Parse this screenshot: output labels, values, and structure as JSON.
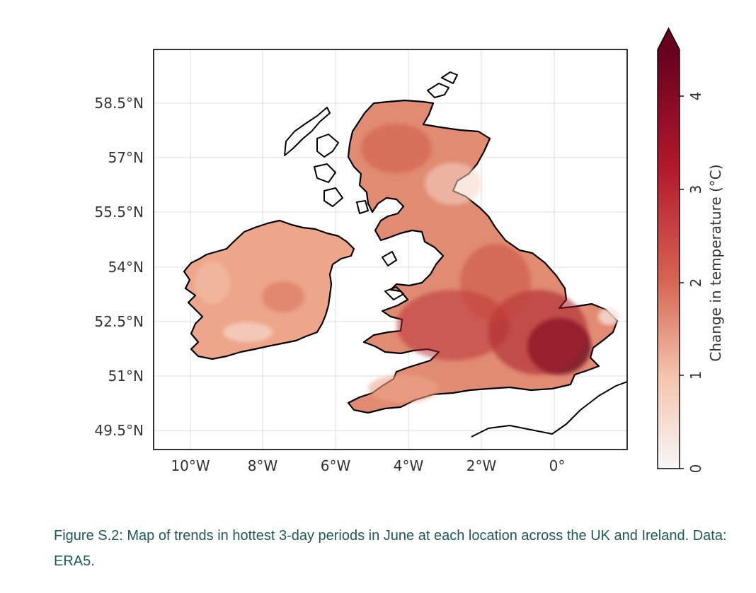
{
  "map": {
    "lat_labels": [
      "58.5°N",
      "57°N",
      "55.5°N",
      "54°N",
      "52.5°N",
      "51°N",
      "49.5°N"
    ],
    "lon_labels": [
      "10°W",
      "8°W",
      "6°W",
      "4°W",
      "2°W",
      "0°"
    ],
    "lat_values": [
      58.5,
      57,
      55.5,
      54,
      52.5,
      51,
      49.5
    ],
    "lon_values": [
      -10,
      -8,
      -6,
      -4,
      -2,
      0
    ],
    "extent": {
      "lon_min": -11,
      "lon_max": 2,
      "lat_min": 49,
      "lat_max": 60
    },
    "gridlines": true,
    "colorbar": {
      "label": "Change in temperature (°C)",
      "ticks": [
        "0",
        "1",
        "2",
        "3",
        "4"
      ],
      "range": [
        0,
        4.5
      ],
      "extend": "max",
      "colormap": "Reds",
      "colors": [
        "#f7f7f7",
        "#f4c4ac",
        "#d66452",
        "#b2182b",
        "#67001f"
      ]
    }
  },
  "caption": {
    "text": "Figure S.2: Map of trends in hottest 3-day periods in June at each location across the UK and Ireland. Data: ERA5."
  }
}
